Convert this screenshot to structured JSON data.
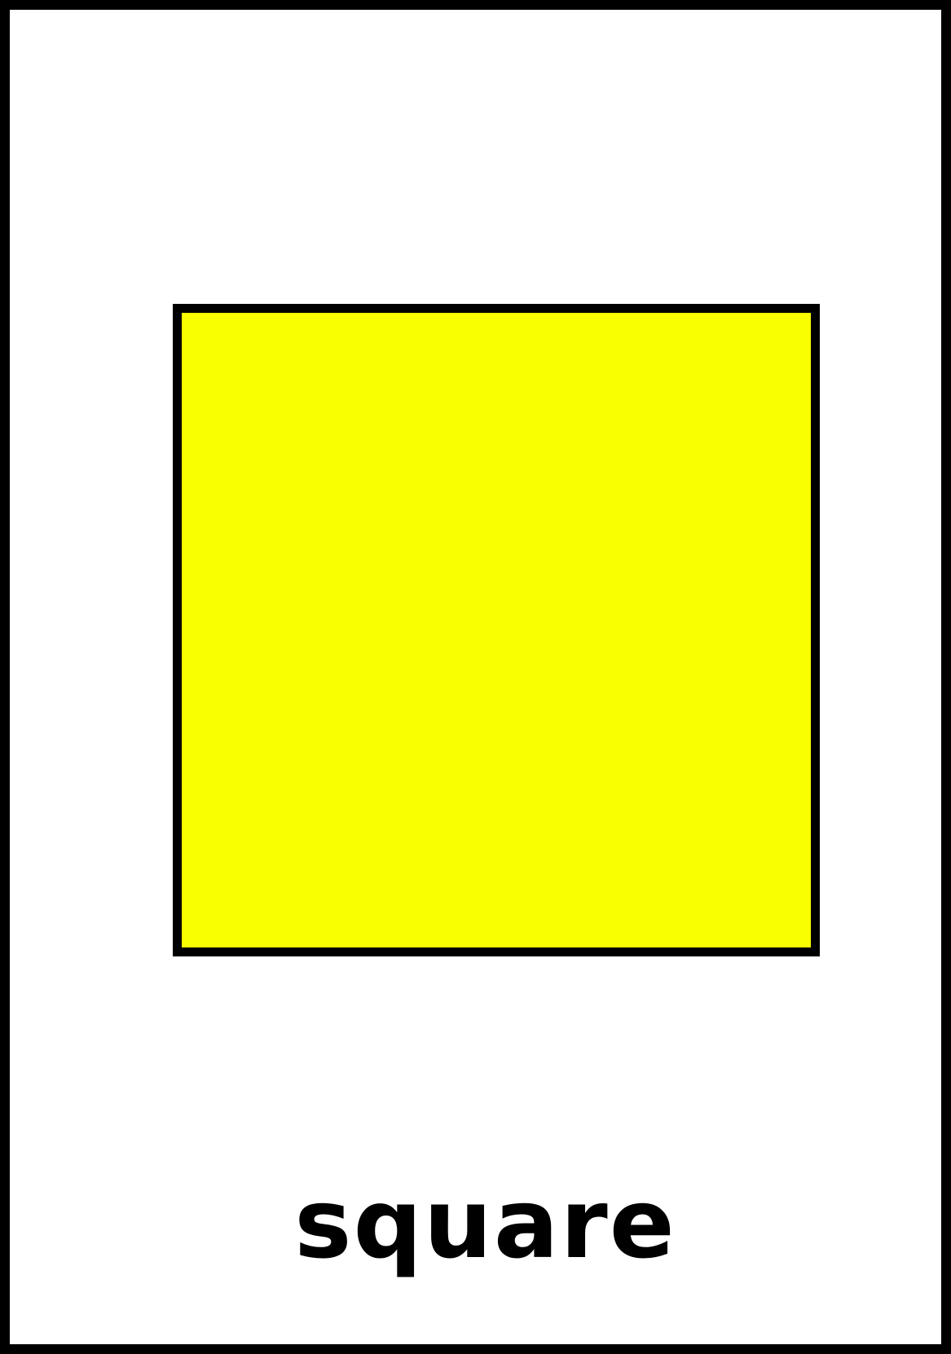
{
  "card": {
    "label": "square",
    "shape": "square",
    "fill_color": "#f9ff00",
    "border_color": "#000000",
    "background_color": "#ffffff"
  }
}
